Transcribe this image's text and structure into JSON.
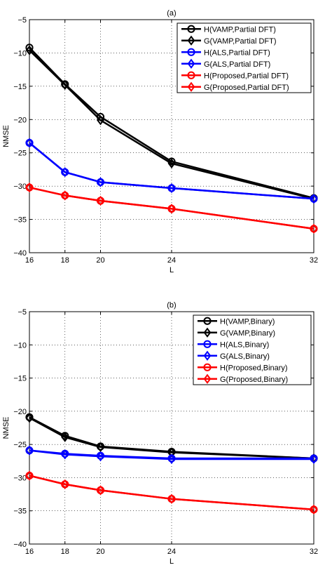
{
  "chart_data": [
    {
      "type": "line",
      "title": "(a)",
      "xlabel": "L",
      "ylabel": "NMSE",
      "x": [
        16,
        18,
        20,
        24,
        32
      ],
      "xlim": [
        16,
        32
      ],
      "ylim": [
        -40,
        -5
      ],
      "xticks": [
        "16",
        "18",
        "20",
        "24",
        "32"
      ],
      "yticks": [
        "−5",
        "−10",
        "−15",
        "−20",
        "−25",
        "−30",
        "−35",
        "−40"
      ],
      "grid": true,
      "legend_position": "top-right",
      "series": [
        {
          "name": "H(VAMP,Partial DFT)",
          "color": "#000000",
          "marker": "circle",
          "values": [
            -9.2,
            -14.7,
            -19.6,
            -26.3,
            -31.8
          ]
        },
        {
          "name": "G(VAMP,Partial DFT)",
          "color": "#000000",
          "marker": "diamond",
          "values": [
            -9.6,
            -14.8,
            -20.1,
            -26.6,
            -31.9
          ]
        },
        {
          "name": "H(ALS,Partial DFT)",
          "color": "#0000ff",
          "marker": "circle",
          "values": [
            -23.5,
            -27.9,
            -29.4,
            -30.3,
            -31.9
          ]
        },
        {
          "name": "G(ALS,Partial DFT)",
          "color": "#0000ff",
          "marker": "diamond",
          "values": [
            -23.5,
            -27.9,
            -29.4,
            -30.3,
            -31.9
          ]
        },
        {
          "name": "H(Proposed,Partial DFT)",
          "color": "#ff0000",
          "marker": "circle",
          "values": [
            -30.2,
            -31.4,
            -32.2,
            -33.4,
            -36.4
          ]
        },
        {
          "name": "G(Proposed,Partial DFT)",
          "color": "#ff0000",
          "marker": "diamond",
          "values": [
            -30.2,
            -31.4,
            -32.2,
            -33.4,
            -36.4
          ]
        }
      ]
    },
    {
      "type": "line",
      "title": "(b)",
      "xlabel": "L",
      "ylabel": "NMSE",
      "x": [
        16,
        18,
        20,
        24,
        32
      ],
      "xlim": [
        16,
        32
      ],
      "ylim": [
        -40,
        -5
      ],
      "xticks": [
        "16",
        "18",
        "20",
        "24",
        "32"
      ],
      "yticks": [
        "−5",
        "−10",
        "−15",
        "−20",
        "−25",
        "−30",
        "−35",
        "−40"
      ],
      "grid": true,
      "legend_position": "top-right",
      "series": [
        {
          "name": "H(VAMP,Binary)",
          "color": "#000000",
          "marker": "circle",
          "values": [
            -20.9,
            -23.7,
            -25.3,
            -26.1,
            -27.1
          ]
        },
        {
          "name": "G(VAMP,Binary)",
          "color": "#000000",
          "marker": "diamond",
          "values": [
            -21.0,
            -23.9,
            -25.4,
            -26.2,
            -27.1
          ]
        },
        {
          "name": "H(ALS,Binary)",
          "color": "#0000ff",
          "marker": "circle",
          "values": [
            -25.9,
            -26.4,
            -26.7,
            -27.1,
            -27.1
          ]
        },
        {
          "name": "G(ALS,Binary)",
          "color": "#0000ff",
          "marker": "diamond",
          "values": [
            -25.9,
            -26.5,
            -26.8,
            -27.2,
            -27.2
          ]
        },
        {
          "name": "H(Proposed,Binary)",
          "color": "#ff0000",
          "marker": "circle",
          "values": [
            -29.7,
            -31.0,
            -31.9,
            -33.2,
            -34.8
          ]
        },
        {
          "name": "G(Proposed,Binary)",
          "color": "#ff0000",
          "marker": "diamond",
          "values": [
            -29.7,
            -31.0,
            -31.9,
            -33.2,
            -34.8
          ]
        }
      ]
    }
  ]
}
